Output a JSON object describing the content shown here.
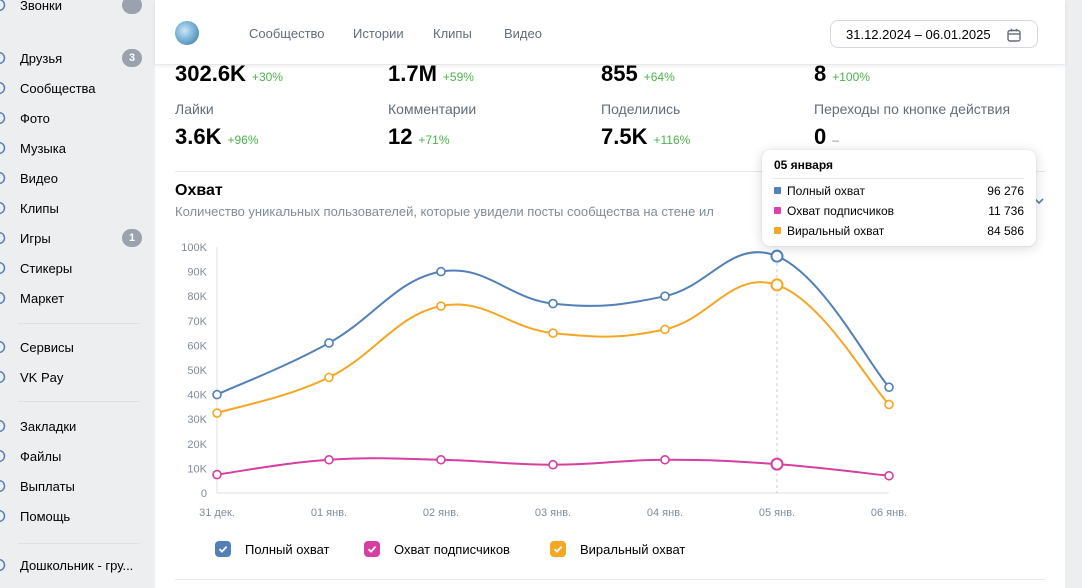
{
  "sidebar": {
    "items": [
      {
        "label": "Звонки",
        "icon": "phone-icon",
        "top": -7,
        "badge": "",
        "partial_badge": true
      },
      {
        "label": "Друзья",
        "icon": "friends-icon",
        "top": 46,
        "badge": "3"
      },
      {
        "label": "Сообщества",
        "icon": "communities-icon",
        "top": 76,
        "badge": ""
      },
      {
        "label": "Фото",
        "icon": "photo-icon",
        "top": 106,
        "badge": ""
      },
      {
        "label": "Музыка",
        "icon": "music-icon",
        "top": 136,
        "badge": ""
      },
      {
        "label": "Видео",
        "icon": "video-icon",
        "top": 166,
        "badge": ""
      },
      {
        "label": "Клипы",
        "icon": "clips-icon",
        "top": 196,
        "badge": ""
      },
      {
        "label": "Игры",
        "icon": "games-icon",
        "top": 226,
        "badge": "1"
      },
      {
        "label": "Стикеры",
        "icon": "stickers-icon",
        "top": 256,
        "badge": ""
      },
      {
        "label": "Маркет",
        "icon": "market-icon",
        "top": 286,
        "badge": ""
      },
      {
        "label": "Сервисы",
        "icon": "services-icon",
        "top": 335,
        "badge": ""
      },
      {
        "label": "VK Pay",
        "icon": "vkpay-icon",
        "top": 365,
        "badge": ""
      },
      {
        "label": "Закладки",
        "icon": "bookmarks-icon",
        "top": 414,
        "badge": ""
      },
      {
        "label": "Файлы",
        "icon": "files-icon",
        "top": 444,
        "badge": ""
      },
      {
        "label": "Выплаты",
        "icon": "payouts-icon",
        "top": 474,
        "badge": ""
      },
      {
        "label": "Помощь",
        "icon": "help-icon",
        "top": 504,
        "badge": ""
      },
      {
        "label": "Дошкольник - гру...",
        "icon": "group-icon",
        "top": 553,
        "badge": ""
      }
    ]
  },
  "tabs": [
    {
      "label": "Сообщество",
      "active": true
    },
    {
      "label": "Истории",
      "active": false
    },
    {
      "label": "Клипы",
      "active": false
    },
    {
      "label": "Видео",
      "active": false
    }
  ],
  "date_range": "31.12.2024 – 06.01.2025",
  "stats_row1": [
    {
      "value": "302.6K",
      "change": "+30%"
    },
    {
      "value": "1.7M",
      "change": "+59%"
    },
    {
      "value": "855",
      "change": "+64%"
    },
    {
      "value": "8",
      "change": "+100%"
    }
  ],
  "stats_row2": [
    {
      "label": "Лайки",
      "value": "3.6K",
      "change": "+96%"
    },
    {
      "label": "Комментарии",
      "value": "12",
      "change": "+71%"
    },
    {
      "label": "Поделились",
      "value": "7.5K",
      "change": "+116%"
    },
    {
      "label": "Переходы по кнопке действия",
      "value": "0",
      "change": "–"
    }
  ],
  "section": {
    "title": "Охват",
    "subtitle": "Количество уникальных пользователей, которые увидели посты сообщества на стене ил"
  },
  "tooltip": {
    "title": "05 января",
    "rows": [
      {
        "name": "Полный охват",
        "value": "96 276",
        "color": "#5181b8"
      },
      {
        "name": "Охват подписчиков",
        "value": "11 736",
        "color": "#e03fab"
      },
      {
        "name": "Виральный охват",
        "value": "84 586",
        "color": "#f5a623"
      }
    ]
  },
  "colors": {
    "full": "#5181b8",
    "subscribers": "#d63ea2",
    "viral": "#f5a623"
  },
  "chart_data": {
    "type": "line",
    "categories": [
      "31 дек.",
      "01 янв.",
      "02 янв.",
      "03 янв.",
      "04 янв.",
      "05 янв.",
      "06 янв."
    ],
    "ylim": [
      0,
      100000
    ],
    "yticks": [
      "0",
      "10K",
      "20K",
      "30K",
      "40K",
      "50K",
      "60K",
      "70K",
      "80K",
      "90K",
      "100K"
    ],
    "series": [
      {
        "name": "Полный охват",
        "color": "#5181b8",
        "values": [
          40000,
          61000,
          90000,
          77000,
          80000,
          96276,
          43000
        ]
      },
      {
        "name": "Охват подписчиков",
        "color": "#d63ea2",
        "values": [
          7500,
          13500,
          13500,
          11500,
          13500,
          11736,
          7000
        ]
      },
      {
        "name": "Виральный охват",
        "color": "#f5a623",
        "values": [
          32500,
          47000,
          76000,
          65000,
          66500,
          84586,
          36000
        ]
      }
    ],
    "highlight_index": 5,
    "legend_position": "bottom-left"
  }
}
